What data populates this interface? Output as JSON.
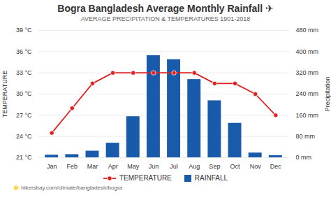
{
  "chart_data": {
    "type": "bar",
    "title": "Bogra Bangladesh Average Monthly Rainfall ✈",
    "subtitle": "AVERAGE PRECIPITATION & TEMPERATURES 1901-2018",
    "categories": [
      "Jan",
      "Feb",
      "Mar",
      "Apr",
      "May",
      "Jun",
      "Jul",
      "Aug",
      "Sep",
      "Oct",
      "Nov",
      "Dec"
    ],
    "series": [
      {
        "name": "TEMPERATURE",
        "type": "line",
        "marker": "circle",
        "color": "#dd2222",
        "values": [
          24.5,
          28.0,
          31.5,
          33.0,
          33.0,
          33.0,
          33.0,
          33.0,
          31.5,
          31.5,
          30.0,
          27.0
        ]
      },
      {
        "name": "RAINFALL",
        "type": "bar",
        "axis": "y2",
        "color": "#1a5aaa",
        "values": [
          10,
          12,
          25,
          55,
          155,
          385,
          370,
          295,
          215,
          130,
          18,
          8
        ]
      }
    ],
    "ylabel": "TEMPERATURE",
    "y2label": "Precipitation",
    "ylim": [
      21,
      39
    ],
    "yticks": [
      {
        "value": 21,
        "label": "21 °C"
      },
      {
        "value": 24,
        "label": "24 °C"
      },
      {
        "value": 27,
        "label": "27 °C"
      },
      {
        "value": 30,
        "label": "30 °C"
      },
      {
        "value": 33,
        "label": "33 °C"
      },
      {
        "value": 36,
        "label": "36 °C"
      },
      {
        "value": 39,
        "label": "39 °C"
      }
    ],
    "y2lim": [
      0,
      480
    ],
    "y2ticks": [
      {
        "value": 0,
        "label": "0 mm"
      },
      {
        "value": 80,
        "label": "80 mm"
      },
      {
        "value": 160,
        "label": "160 mm"
      },
      {
        "value": 240,
        "label": "240 mm"
      },
      {
        "value": 320,
        "label": "320 mm"
      },
      {
        "value": 400,
        "label": "400 mm"
      },
      {
        "value": 480,
        "label": "480 mm"
      }
    ],
    "grid": true,
    "legend": "bottom",
    "annotations": [
      "⭐ hikersbay.com/climate/bangladesh/bogra"
    ]
  }
}
